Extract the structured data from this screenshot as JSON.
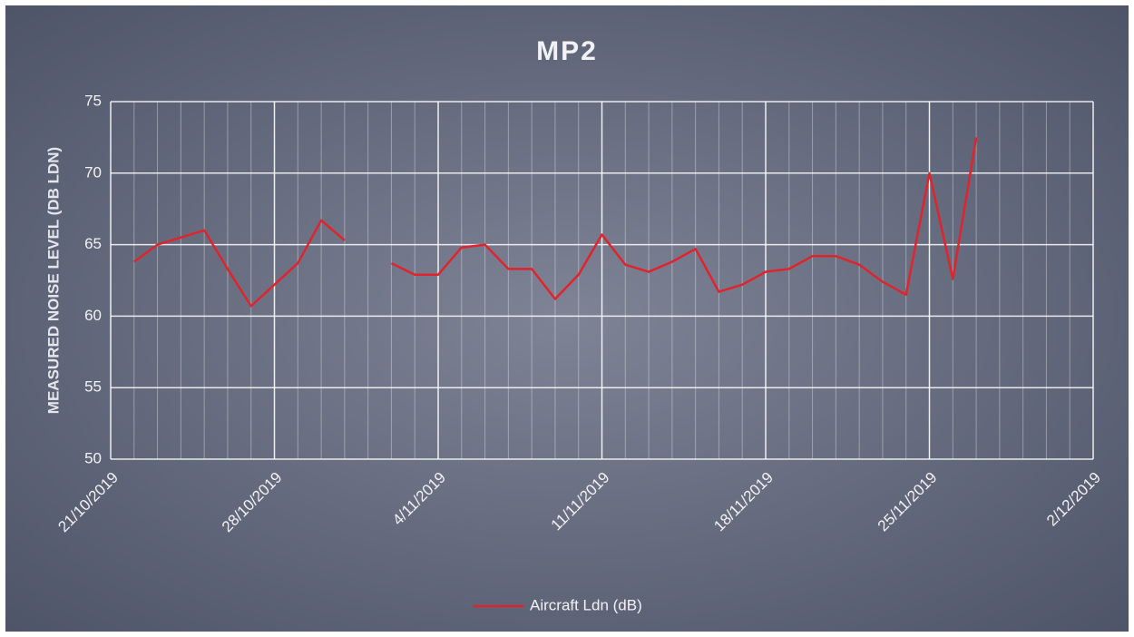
{
  "chart_data": {
    "type": "line",
    "title": "MP2",
    "ylabel": "MEASURED NOISE LEVEL (DB LDN)",
    "x": [
      "2019-10-22",
      "2019-10-23",
      "2019-10-24",
      "2019-10-25",
      "2019-10-26",
      "2019-10-27",
      "2019-10-28",
      "2019-10-29",
      "2019-10-30",
      "2019-10-31",
      "2019-11-01",
      "2019-11-02",
      "2019-11-03",
      "2019-11-04",
      "2019-11-05",
      "2019-11-06",
      "2019-11-07",
      "2019-11-08",
      "2019-11-09",
      "2019-11-10",
      "2019-11-11",
      "2019-11-12",
      "2019-11-13",
      "2019-11-14",
      "2019-11-15",
      "2019-11-16",
      "2019-11-17",
      "2019-11-18",
      "2019-11-19",
      "2019-11-20",
      "2019-11-21",
      "2019-11-22",
      "2019-11-23",
      "2019-11-24",
      "2019-11-25",
      "2019-11-26",
      "2019-11-27"
    ],
    "series": [
      {
        "name": "Aircraft Ldn (dB)",
        "color": "#e0232d",
        "values": [
          63.8,
          65.0,
          65.5,
          66.0,
          63.3,
          60.7,
          62.2,
          63.7,
          66.7,
          65.3,
          null,
          63.7,
          62.9,
          62.9,
          64.8,
          65.0,
          63.3,
          63.3,
          61.2,
          62.9,
          65.7,
          63.6,
          63.1,
          63.8,
          64.7,
          61.7,
          62.2,
          63.1,
          63.3,
          64.2,
          64.2,
          63.6,
          62.4,
          61.5,
          70.0,
          62.6,
          72.5
        ]
      }
    ],
    "xlim": [
      "2019-10-21",
      "2019-12-02"
    ],
    "xticks": [
      {
        "value": "2019-10-21",
        "label": "21/10/2019"
      },
      {
        "value": "2019-10-28",
        "label": "28/10/2019"
      },
      {
        "value": "2019-11-04",
        "label": "4/11/2019"
      },
      {
        "value": "2019-11-11",
        "label": "11/11/2019"
      },
      {
        "value": "2019-11-18",
        "label": "18/11/2019"
      },
      {
        "value": "2019-11-25",
        "label": "25/11/2019"
      },
      {
        "value": "2019-12-02",
        "label": "2/12/2019"
      }
    ],
    "ylim": [
      50,
      75
    ],
    "yticks": [
      50,
      55,
      60,
      65,
      70,
      75
    ],
    "grid": true,
    "legend": "bottom"
  }
}
